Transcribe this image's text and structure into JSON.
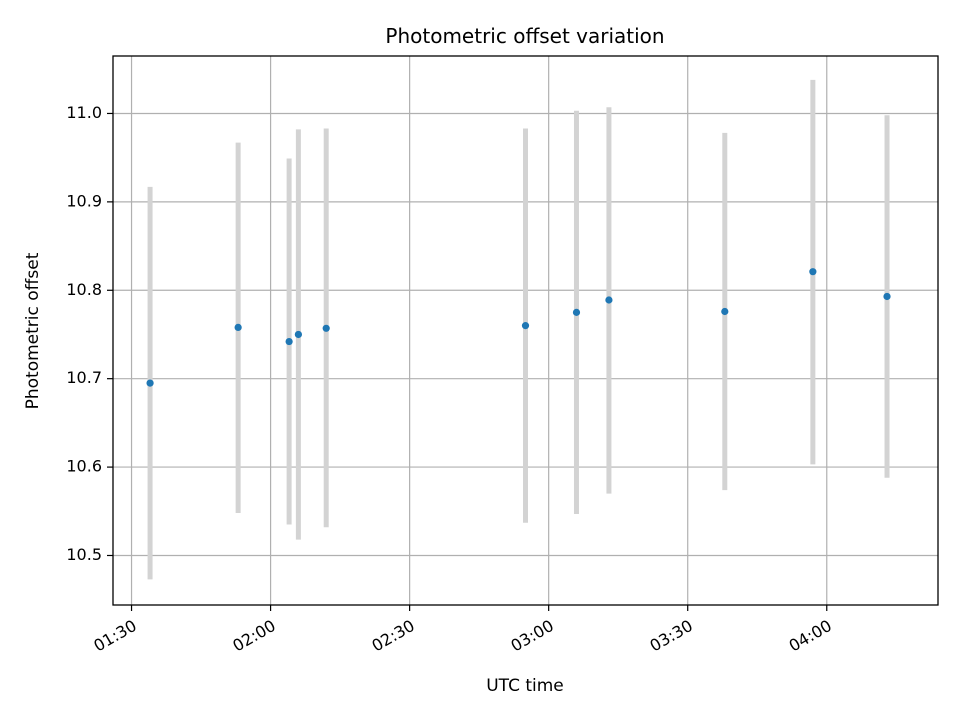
{
  "chart_data": {
    "type": "scatter",
    "title": "Photometric offset variation",
    "xlabel": "UTC time",
    "ylabel": "Photometric offset",
    "x_axis_type": "time",
    "xlim": [
      "01:26",
      "04:24"
    ],
    "ylim": [
      10.444,
      11.065
    ],
    "x_ticks": [
      "01:30",
      "02:00",
      "02:30",
      "03:00",
      "03:30",
      "04:00"
    ],
    "y_ticks": [
      "10.5",
      "10.6",
      "10.7",
      "10.8",
      "10.9",
      "11.0"
    ],
    "grid": true,
    "legend": "none",
    "series": [
      {
        "marker_color": "#1f77b4",
        "errorbar_color": "#d3d3d3",
        "points": [
          {
            "x": "01:34",
            "y": 10.695,
            "y_low": 10.473,
            "y_high": 10.917
          },
          {
            "x": "01:53",
            "y": 10.758,
            "y_low": 10.548,
            "y_high": 10.967
          },
          {
            "x": "02:04",
            "y": 10.742,
            "y_low": 10.535,
            "y_high": 10.949
          },
          {
            "x": "02:06",
            "y": 10.75,
            "y_low": 10.518,
            "y_high": 10.982
          },
          {
            "x": "02:12",
            "y": 10.757,
            "y_low": 10.532,
            "y_high": 10.983
          },
          {
            "x": "02:55",
            "y": 10.76,
            "y_low": 10.537,
            "y_high": 10.983
          },
          {
            "x": "03:06",
            "y": 10.775,
            "y_low": 10.547,
            "y_high": 11.003
          },
          {
            "x": "03:13",
            "y": 10.789,
            "y_low": 10.57,
            "y_high": 11.007
          },
          {
            "x": "03:38",
            "y": 10.776,
            "y_low": 10.574,
            "y_high": 10.978
          },
          {
            "x": "03:57",
            "y": 10.821,
            "y_low": 10.603,
            "y_high": 11.038
          },
          {
            "x": "04:13",
            "y": 10.793,
            "y_low": 10.588,
            "y_high": 10.998
          }
        ]
      }
    ],
    "colors": {
      "axis": "#000000",
      "grid": "#b0b0b0",
      "background": "#ffffff"
    }
  }
}
